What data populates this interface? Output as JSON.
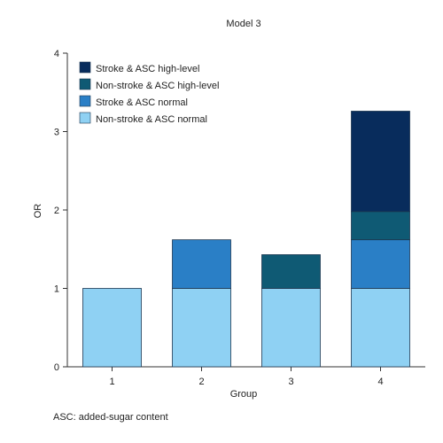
{
  "chart_data": {
    "type": "bar",
    "stacked": true,
    "title": "Model 3",
    "xlabel": "Group",
    "ylabel": "OR",
    "ylim": [
      0,
      4
    ],
    "yticks": [
      0,
      1,
      2,
      3,
      4
    ],
    "categories": [
      "1",
      "2",
      "3",
      "4"
    ],
    "series": [
      {
        "name": "Non-stroke & ASC normal",
        "color": "#8fd1f3",
        "values": [
          1.0,
          1.0,
          1.0,
          1.0
        ]
      },
      {
        "name": "Stroke & ASC normal",
        "color": "#2a7fc6",
        "values": [
          0,
          0.62,
          0,
          0.62
        ]
      },
      {
        "name": "Non-stroke & ASC high-level",
        "color": "#0f5a74",
        "values": [
          0,
          0,
          0.43,
          0.36
        ]
      },
      {
        "name": "Stroke & ASC high-level",
        "color": "#082c5c",
        "values": [
          0,
          0,
          0,
          1.28
        ]
      }
    ],
    "legend_position": "top-left",
    "legend_order": [
      3,
      2,
      1,
      0
    ],
    "footnote": "ASC: added-sugar content"
  }
}
